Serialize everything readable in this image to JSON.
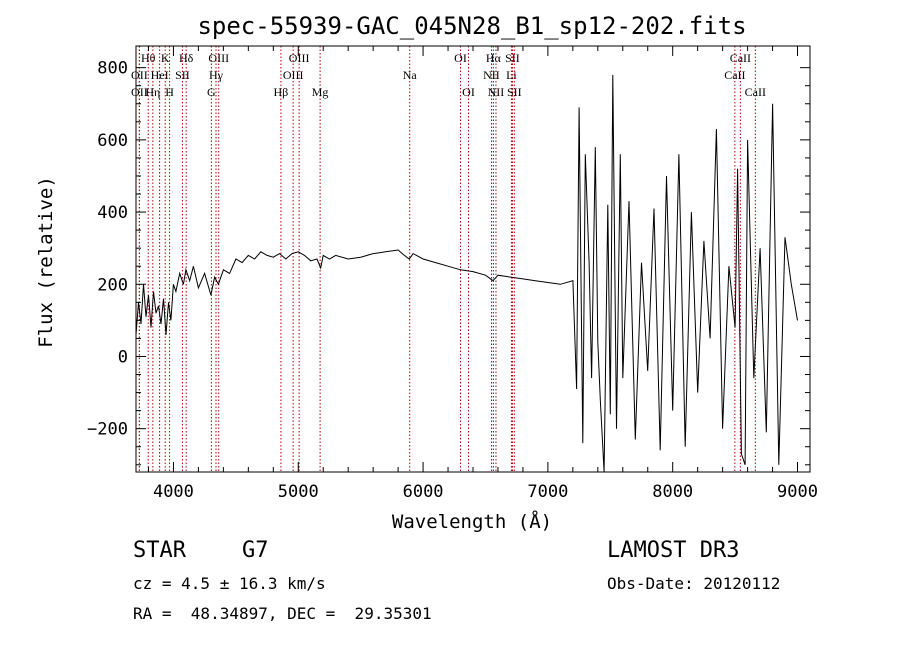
{
  "chart_data": {
    "type": "line",
    "title": "spec-55939-GAC_045N28_B1_sp12-202.fits",
    "xlabel": "Wavelength (Å)",
    "ylabel": "Flux (relative)",
    "xlim": [
      3700,
      9100
    ],
    "ylim": [
      -320,
      860
    ],
    "xticks": [
      4000,
      5000,
      6000,
      7000,
      8000,
      9000
    ],
    "yticks": [
      -200,
      0,
      200,
      400,
      600,
      800
    ],
    "grid": false,
    "series": [
      {
        "name": "flux",
        "x": [
          3700,
          3720,
          3740,
          3760,
          3780,
          3800,
          3820,
          3840,
          3860,
          3880,
          3900,
          3920,
          3940,
          3960,
          3980,
          4000,
          4020,
          4050,
          4080,
          4100,
          4130,
          4160,
          4200,
          4250,
          4300,
          4330,
          4360,
          4400,
          4450,
          4500,
          4550,
          4600,
          4650,
          4700,
          4750,
          4800,
          4850,
          4900,
          4950,
          5000,
          5050,
          5100,
          5150,
          5180,
          5200,
          5250,
          5300,
          5400,
          5500,
          5600,
          5700,
          5800,
          5850,
          5890,
          5920,
          6000,
          6100,
          6200,
          6300,
          6400,
          6500,
          6560,
          6600,
          6700,
          6800,
          6900,
          7000,
          7100,
          7200,
          7230,
          7250,
          7280,
          7300,
          7330,
          7350,
          7380,
          7400,
          7420,
          7450,
          7480,
          7500,
          7520,
          7550,
          7580,
          7600,
          7650,
          7700,
          7750,
          7800,
          7850,
          7900,
          7950,
          8000,
          8050,
          8100,
          8150,
          8200,
          8250,
          8300,
          8350,
          8400,
          8450,
          8500,
          8520,
          8550,
          8580,
          8600,
          8650,
          8700,
          8750,
          8800,
          8850,
          8900,
          8950,
          9000
        ],
        "y": [
          60,
          150,
          90,
          200,
          110,
          170,
          80,
          180,
          120,
          140,
          90,
          160,
          60,
          150,
          100,
          200,
          180,
          230,
          200,
          240,
          210,
          250,
          190,
          230,
          170,
          220,
          200,
          240,
          230,
          270,
          260,
          280,
          270,
          290,
          280,
          275,
          285,
          270,
          285,
          290,
          280,
          265,
          270,
          245,
          280,
          270,
          280,
          270,
          275,
          285,
          290,
          295,
          280,
          270,
          285,
          270,
          260,
          250,
          240,
          235,
          225,
          210,
          225,
          220,
          215,
          210,
          205,
          200,
          210,
          -90,
          690,
          -240,
          560,
          260,
          -60,
          580,
          40,
          -120,
          -320,
          420,
          -160,
          780,
          -200,
          560,
          -60,
          430,
          -230,
          260,
          -40,
          410,
          -260,
          500,
          -150,
          560,
          -250,
          400,
          -100,
          320,
          50,
          630,
          -200,
          250,
          80,
          520,
          -270,
          -300,
          600,
          -60,
          300,
          -210,
          700,
          -300,
          330,
          200,
          100
        ]
      }
    ],
    "lines": [
      {
        "label": "Hθ",
        "wl": 3798,
        "pos": "top",
        "row": 1
      },
      {
        "label": "OII",
        "wl": 3727,
        "pos": "top",
        "row": 2
      },
      {
        "label": "OII",
        "wl": 3727,
        "pos": "top",
        "row": 3
      },
      {
        "label": "Hη",
        "wl": 3835,
        "pos": "top",
        "row": 3
      },
      {
        "label": "K",
        "wl": 3934,
        "pos": "top",
        "row": 1
      },
      {
        "label": "HeI",
        "wl": 3889,
        "pos": "top",
        "row": 2
      },
      {
        "label": "H",
        "wl": 3969,
        "pos": "top",
        "row": 3
      },
      {
        "label": "SII",
        "wl": 4072,
        "pos": "top",
        "row": 2
      },
      {
        "label": "Hδ",
        "wl": 4102,
        "pos": "top",
        "row": 1
      },
      {
        "label": "OIII",
        "wl": 4363,
        "pos": "top",
        "row": 1
      },
      {
        "label": "Hγ",
        "wl": 4341,
        "pos": "top",
        "row": 2
      },
      {
        "label": "G",
        "wl": 4304,
        "pos": "top",
        "row": 3
      },
      {
        "label": "Hβ",
        "wl": 4861,
        "pos": "top",
        "row": 3
      },
      {
        "label": "OIII",
        "wl": 5007,
        "pos": "top",
        "row": 1
      },
      {
        "label": "OIII",
        "wl": 4959,
        "pos": "top",
        "row": 2
      },
      {
        "label": "Mg",
        "wl": 5175,
        "pos": "top",
        "row": 3
      },
      {
        "label": "Na",
        "wl": 5893,
        "pos": "top",
        "row": 2
      },
      {
        "label": "OI",
        "wl": 6300,
        "pos": "top",
        "row": 1
      },
      {
        "label": "OI",
        "wl": 6364,
        "pos": "top",
        "row": 3
      },
      {
        "label": "Hα",
        "wl": 6563,
        "pos": "top",
        "row": 1
      },
      {
        "label": "SII",
        "wl": 6716,
        "pos": "top",
        "row": 1
      },
      {
        "label": "NII",
        "wl": 6548,
        "pos": "top",
        "row": 2
      },
      {
        "label": "Li",
        "wl": 6708,
        "pos": "top",
        "row": 2
      },
      {
        "label": "NII",
        "wl": 6584,
        "pos": "top",
        "row": 3
      },
      {
        "label": "SII",
        "wl": 6731,
        "pos": "top",
        "row": 3
      },
      {
        "label": "CaII",
        "wl": 8542,
        "pos": "top",
        "row": 1
      },
      {
        "label": "CaII",
        "wl": 8498,
        "pos": "top",
        "row": 2
      },
      {
        "label": "CaII",
        "wl": 8662,
        "pos": "top",
        "row": 3
      }
    ]
  },
  "info": {
    "object_class": "STAR",
    "subclass": "G7",
    "survey": "LAMOST DR3",
    "cz": "cz = 4.5 ± 16.3 km/s",
    "obs_date": "Obs-Date: 20120112",
    "coords": "RA =  48.34897, DEC =  29.35301"
  },
  "colors": {
    "line": "#000000",
    "marker": "#b30000",
    "background": "#ffffff"
  }
}
